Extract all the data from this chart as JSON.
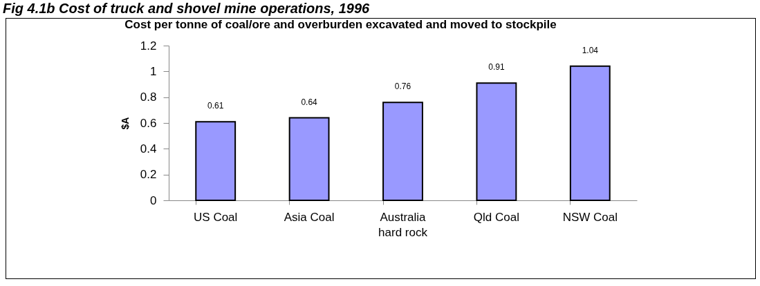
{
  "chart_data": {
    "type": "bar",
    "title": "Fig 4.1b  Cost of truck and shovel mine operations, 1996",
    "subtitle": "Cost per tonne of coal/ore and overburden excavated and moved to stockpile",
    "ylabel": "$A",
    "categories": [
      "US Coal",
      "Asia Coal",
      "Australia hard rock",
      "Qld Coal",
      "NSW Coal"
    ],
    "values": [
      0.61,
      0.64,
      0.76,
      0.91,
      1.04
    ],
    "color": "#9999ff",
    "ylim": [
      0,
      1.2
    ],
    "yticks": [
      0,
      0.2,
      0.4,
      0.6,
      0.8,
      1,
      1.2
    ],
    "data_labels": true
  }
}
